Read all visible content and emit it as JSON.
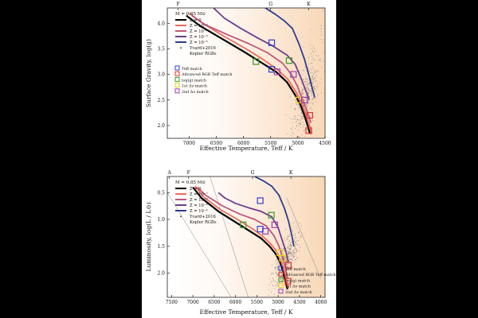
{
  "colors": {
    "z0": "#000000",
    "z1e7": "#f26b5b",
    "z1e5": "#c0587a",
    "z1e3": "#6d3d8f",
    "z1e2": "#2b3d8f",
    "marker_teff": "#2e3fd0",
    "marker_adv": "#e0332a",
    "marker_logg": "#3a9a2a",
    "marker_dnu1": "#e8d020",
    "marker_dnu2": "#a03ab0",
    "kepler": "#555555"
  },
  "chart_data": [
    {
      "type": "line",
      "title": "",
      "xlabel": "Effective Temperature, Teff / K",
      "ylabel": "Surface Gravity, log(g)",
      "xlim": [
        7400,
        4500
      ],
      "ylim": [
        4.3,
        1.75
      ],
      "xticks": [
        7000,
        6500,
        6000,
        5500,
        5000,
        4500
      ],
      "yticks": [
        2.0,
        2.5,
        3.0,
        3.5,
        4.0
      ],
      "ytick_labels": [
        "2.0",
        "2.5",
        "3.0",
        "3.5",
        "4.0"
      ],
      "spectral_classes": [
        {
          "label": "F",
          "teff": 7200
        },
        {
          "label": "G",
          "teff": 5500
        },
        {
          "label": "K",
          "teff": 4800
        }
      ],
      "mass_label": "M = 0.85 M⊙",
      "legend": [
        {
          "label": "Z = 0",
          "key": "z0"
        },
        {
          "label": "Z = 10⁻⁷",
          "key": "z1e7"
        },
        {
          "label": "Z = 10⁻⁵",
          "key": "z1e5"
        },
        {
          "label": "Z = 10⁻³",
          "key": "z1e3"
        },
        {
          "label": "Z = 10⁻²",
          "key": "z1e2"
        },
        {
          "label": "Yvard+2016",
          "key": "kepler"
        },
        {
          "label": "Kepler RGBs",
          "key": "none"
        }
      ],
      "marker_legend": [
        {
          "label": "Teff match",
          "key": "marker_teff"
        },
        {
          "label": "Advanced RGB Teff match",
          "key": "marker_adv"
        },
        {
          "label": "log(g) match",
          "key": "marker_logg"
        },
        {
          "label": "1st Δν match",
          "key": "marker_dnu1"
        },
        {
          "label": "2nd Δν match",
          "key": "marker_dnu2"
        }
      ],
      "series": [
        {
          "name": "Z = 0",
          "key": "z0",
          "x": [
            7050,
            6800,
            6400,
            6000,
            5700,
            5400,
            5200,
            5050,
            4950,
            4880,
            4820,
            4780
          ],
          "y": [
            4.15,
            3.95,
            3.7,
            3.45,
            3.25,
            3.05,
            2.85,
            2.6,
            2.4,
            2.2,
            2.0,
            1.85
          ]
        },
        {
          "name": "Z = 10⁻⁷",
          "key": "z1e7",
          "x": [
            7000,
            6750,
            6350,
            5950,
            5650,
            5380,
            5180,
            5030,
            4930,
            4860,
            4800,
            4740
          ],
          "y": [
            4.2,
            4.0,
            3.74,
            3.5,
            3.3,
            3.1,
            2.9,
            2.65,
            2.45,
            2.25,
            2.05,
            1.85
          ]
        },
        {
          "name": "Z = 10⁻⁵",
          "key": "z1e5",
          "x": [
            6950,
            6700,
            6300,
            5900,
            5550,
            5280,
            5120,
            5000,
            4910,
            4830,
            4760
          ],
          "y": [
            4.15,
            3.97,
            3.78,
            3.6,
            3.42,
            3.22,
            3.0,
            2.75,
            2.5,
            2.28,
            2.05
          ]
        },
        {
          "name": "Z = 10⁻³",
          "key": "z1e3",
          "x": [
            6550,
            6350,
            6050,
            5750,
            5450,
            5200,
            5050,
            4950,
            4860,
            4790
          ],
          "y": [
            4.3,
            4.1,
            3.9,
            3.72,
            3.55,
            3.38,
            3.2,
            2.95,
            2.7,
            2.5
          ]
        },
        {
          "name": "Z = 10⁻²",
          "key": "z1e2",
          "x": [
            5600,
            5420,
            5250,
            5100,
            4980,
            4880,
            4800,
            4740,
            4690
          ],
          "y": [
            4.3,
            4.18,
            4.05,
            3.9,
            3.6,
            3.3,
            3.0,
            2.75,
            2.55
          ]
        }
      ],
      "markers": [
        {
          "key": "marker_adv",
          "teff": 4800,
          "value": 1.9
        },
        {
          "key": "marker_adv",
          "teff": 4780,
          "value": 2.2
        },
        {
          "key": "marker_dnu1",
          "teff": 4980,
          "value": 2.5
        },
        {
          "key": "marker_dnu2",
          "teff": 4880,
          "value": 2.5
        },
        {
          "key": "marker_teff",
          "teff": 5480,
          "value": 3.1
        },
        {
          "key": "marker_dnu2",
          "teff": 5380,
          "value": 3.05
        },
        {
          "key": "marker_logg",
          "teff": 5770,
          "value": 3.25
        },
        {
          "key": "marker_logg",
          "teff": 5160,
          "value": 3.27
        },
        {
          "key": "marker_dnu2",
          "teff": 5080,
          "value": 3.0
        },
        {
          "key": "marker_teff",
          "teff": 5480,
          "value": 3.62
        }
      ]
    },
    {
      "type": "line",
      "title": "",
      "xlabel": "Effective Temperature, Teff / K",
      "ylabel": "Luminosity, log(L / L⊙)",
      "xlim": [
        7600,
        3900
      ],
      "ylim": [
        0.2,
        2.45
      ],
      "xticks": [
        7500,
        7000,
        6500,
        6000,
        5500,
        5000,
        4500,
        4000
      ],
      "yticks": [
        0.5,
        1.0,
        1.5,
        2.0
      ],
      "ytick_labels": [
        "0.5",
        "1.0",
        "1.5",
        "2.0"
      ],
      "spectral_classes": [
        {
          "label": "A",
          "teff": 7550
        },
        {
          "label": "F",
          "teff": 7100
        },
        {
          "label": "G",
          "teff": 5600
        },
        {
          "label": "K",
          "teff": 4700
        }
      ],
      "mass_label": "M = 0.85 M⊙",
      "legend": [
        {
          "label": "Z = 0",
          "key": "z0"
        },
        {
          "label": "Z = 10⁻⁷",
          "key": "z1e7"
        },
        {
          "label": "Z = 10⁻⁵",
          "key": "z1e5"
        },
        {
          "label": "Z = 10⁻³",
          "key": "z1e3"
        },
        {
          "label": "Z = 10⁻²",
          "key": "z1e2"
        },
        {
          "label": "Yvard+2016",
          "key": "kepler"
        },
        {
          "label": "Kepler RGBs",
          "key": "none"
        }
      ],
      "marker_legend": [
        {
          "label": "Teff match",
          "key": "marker_teff"
        },
        {
          "label": "Advanced RGB Teff match",
          "key": "marker_adv"
        },
        {
          "label": "log(g) match",
          "key": "marker_logg"
        },
        {
          "label": "1st Δν match",
          "key": "marker_dnu1"
        },
        {
          "label": "2nd Δν match",
          "key": "marker_dnu2"
        }
      ],
      "series": [
        {
          "name": "Z = 0",
          "key": "z0",
          "x": [
            7000,
            6800,
            6400,
            6000,
            5700,
            5400,
            5200,
            5050,
            4950,
            4880,
            4830,
            4780
          ],
          "y": [
            0.4,
            0.6,
            0.85,
            1.05,
            1.2,
            1.35,
            1.5,
            1.65,
            1.8,
            1.98,
            2.15,
            2.3
          ]
        },
        {
          "name": "Z = 10⁻⁷",
          "key": "z1e7",
          "x": [
            6950,
            6750,
            6350,
            5950,
            5650,
            5380,
            5180,
            5030,
            4930,
            4860,
            4810,
            4760
          ],
          "y": [
            0.38,
            0.58,
            0.82,
            1.0,
            1.15,
            1.3,
            1.45,
            1.6,
            1.78,
            1.95,
            2.12,
            2.28
          ]
        },
        {
          "name": "Z = 10⁻⁵",
          "key": "z1e5",
          "x": [
            6900,
            6700,
            6300,
            5900,
            5550,
            5280,
            5100,
            4980,
            4900,
            4830,
            4780
          ],
          "y": [
            0.4,
            0.55,
            0.75,
            0.9,
            1.0,
            1.12,
            1.3,
            1.5,
            1.7,
            1.9,
            2.1
          ]
        },
        {
          "name": "Z = 10⁻³",
          "key": "z1e3",
          "x": [
            6400,
            6250,
            6000,
            5700,
            5400,
            5150,
            5000,
            4900,
            4820,
            4760
          ],
          "y": [
            0.5,
            0.6,
            0.7,
            0.78,
            0.85,
            0.95,
            1.15,
            1.4,
            1.6,
            1.8
          ]
        },
        {
          "name": "Z = 10⁻²",
          "key": "z1e2",
          "x": [
            5550,
            5350,
            5150,
            4980,
            4850,
            4750,
            4680,
            4630
          ],
          "y": [
            0.2,
            0.28,
            0.38,
            0.55,
            0.8,
            1.05,
            1.3,
            1.5
          ]
        }
      ],
      "markers": [
        {
          "key": "marker_adv",
          "teff": 4770,
          "value": 2.15
        },
        {
          "key": "marker_adv",
          "teff": 4760,
          "value": 1.85
        },
        {
          "key": "marker_dnu1",
          "teff": 4960,
          "value": 1.62
        },
        {
          "key": "marker_dnu1",
          "teff": 4900,
          "value": 1.72
        },
        {
          "key": "marker_dnu2",
          "teff": 5300,
          "value": 1.22
        },
        {
          "key": "marker_teff",
          "teff": 5420,
          "value": 1.18
        },
        {
          "key": "marker_logg",
          "teff": 5820,
          "value": 1.1
        },
        {
          "key": "marker_dnu2",
          "teff": 5080,
          "value": 1.1
        },
        {
          "key": "marker_logg",
          "teff": 5160,
          "value": 0.92
        },
        {
          "key": "marker_teff",
          "teff": 5420,
          "value": 0.65
        }
      ]
    }
  ]
}
